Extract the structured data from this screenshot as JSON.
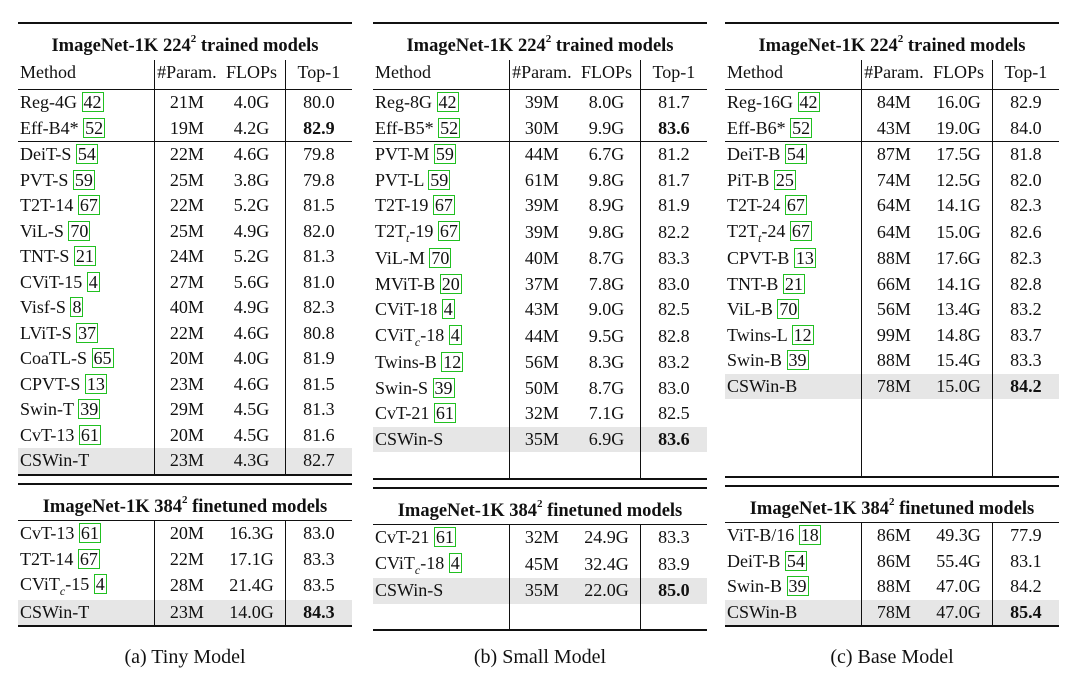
{
  "panels": [
    {
      "caption": "(a) Tiny Model",
      "t224": {
        "prefix": "ImageNet-1K 224",
        "sup": "2",
        "suffix": " trained models"
      },
      "headers": {
        "method": "Method",
        "params": "#Param.",
        "flops": "FLOPs",
        "top1": "Top-1"
      },
      "group1": [
        {
          "name": "Reg-4G ",
          "sub": "",
          "name2": "",
          "ref": "42",
          "params": "21M",
          "flops": "4.0G",
          "top1": "80.0",
          "bold": false
        },
        {
          "name": "Eff-B4* ",
          "sub": "",
          "name2": "",
          "ref": "52",
          "params": "19M",
          "flops": "4.2G",
          "top1": "82.9",
          "bold": true
        }
      ],
      "group2": [
        {
          "name": "DeiT-S ",
          "sub": "",
          "name2": "",
          "ref": "54",
          "params": "22M",
          "flops": "4.6G",
          "top1": "79.8"
        },
        {
          "name": "PVT-S ",
          "sub": "",
          "name2": "",
          "ref": "59",
          "params": "25M",
          "flops": "3.8G",
          "top1": "79.8"
        },
        {
          "name": "T2T-14 ",
          "sub": "",
          "name2": "",
          "ref": "67",
          "params": "22M",
          "flops": "5.2G",
          "top1": "81.5"
        },
        {
          "name": "ViL-S ",
          "sub": "",
          "name2": "",
          "ref": "70",
          "params": "25M",
          "flops": "4.9G",
          "top1": "82.0"
        },
        {
          "name": "TNT-S ",
          "sub": "",
          "name2": "",
          "ref": "21",
          "params": "24M",
          "flops": "5.2G",
          "top1": "81.3"
        },
        {
          "name": "CViT-15 ",
          "sub": "",
          "name2": "",
          "ref": "4",
          "params": "27M",
          "flops": "5.6G",
          "top1": "81.0"
        },
        {
          "name": "Visf-S ",
          "sub": "",
          "name2": "",
          "ref": "8",
          "params": "40M",
          "flops": "4.9G",
          "top1": "82.3"
        },
        {
          "name": "LViT-S ",
          "sub": "",
          "name2": "",
          "ref": "37",
          "params": "22M",
          "flops": "4.6G",
          "top1": "80.8"
        },
        {
          "name": "CoaTL-S ",
          "sub": "",
          "name2": "",
          "ref": "65",
          "params": "20M",
          "flops": "4.0G",
          "top1": "81.9"
        },
        {
          "name": "CPVT-S ",
          "sub": "",
          "name2": "",
          "ref": "13",
          "params": "23M",
          "flops": "4.6G",
          "top1": "81.5"
        },
        {
          "name": "Swin-T ",
          "sub": "",
          "name2": "",
          "ref": "39",
          "params": "29M",
          "flops": "4.5G",
          "top1": "81.3"
        },
        {
          "name": "CvT-13 ",
          "sub": "",
          "name2": "",
          "ref": "61",
          "params": "20M",
          "flops": "4.5G",
          "top1": "81.6"
        }
      ],
      "ours224": {
        "name": "CSWin-T",
        "params": "23M",
        "flops": "4.3G",
        "top1": "82.7",
        "bold": false
      },
      "empty224": 0,
      "t384": {
        "prefix": "ImageNet-1K 384",
        "sup": "2",
        "suffix": " finetuned models"
      },
      "group384": [
        {
          "name": "CvT-13 ",
          "sub": "",
          "name2": "",
          "ref": "61",
          "params": "20M",
          "flops": "16.3G",
          "top1": "83.0"
        },
        {
          "name": "T2T-14 ",
          "sub": "",
          "name2": "",
          "ref": "67",
          "params": "22M",
          "flops": "17.1G",
          "top1": "83.3"
        },
        {
          "name": "CViT",
          "sub": "c",
          "name2": "-15 ",
          "ref": "4",
          "params": "28M",
          "flops": "21.4G",
          "top1": "83.5"
        }
      ],
      "ours384": {
        "name": "CSWin-T",
        "params": "23M",
        "flops": "14.0G",
        "top1": "84.3",
        "bold": true
      },
      "empty384": 0
    },
    {
      "caption": "(b) Small Model",
      "t224": {
        "prefix": "ImageNet-1K 224",
        "sup": "2",
        "suffix": " trained models"
      },
      "headers": {
        "method": "Method",
        "params": "#Param.",
        "flops": "FLOPs",
        "top1": "Top-1"
      },
      "group1": [
        {
          "name": "Reg-8G ",
          "sub": "",
          "name2": "",
          "ref": "42",
          "params": "39M",
          "flops": "8.0G",
          "top1": "81.7",
          "bold": false
        },
        {
          "name": "Eff-B5* ",
          "sub": "",
          "name2": "",
          "ref": "52",
          "params": "30M",
          "flops": "9.9G",
          "top1": "83.6",
          "bold": true
        }
      ],
      "group2": [
        {
          "name": "PVT-M ",
          "sub": "",
          "name2": "",
          "ref": "59",
          "params": "44M",
          "flops": "6.7G",
          "top1": "81.2"
        },
        {
          "name": "PVT-L ",
          "sub": "",
          "name2": "",
          "ref": "59",
          "params": "61M",
          "flops": "9.8G",
          "top1": "81.7"
        },
        {
          "name": "T2T-19 ",
          "sub": "",
          "name2": "",
          "ref": "67",
          "params": "39M",
          "flops": "8.9G",
          "top1": "81.9"
        },
        {
          "name": "T2T",
          "sub": "t",
          "name2": "-19 ",
          "ref": "67",
          "params": "39M",
          "flops": "9.8G",
          "top1": "82.2"
        },
        {
          "name": "ViL-M ",
          "sub": "",
          "name2": "",
          "ref": "70",
          "params": "40M",
          "flops": "8.7G",
          "top1": "83.3"
        },
        {
          "name": "MViT-B  ",
          "sub": "",
          "name2": "",
          "ref": "20",
          "params": "37M",
          "flops": "7.8G",
          "top1": "83.0"
        },
        {
          "name": "CViT-18 ",
          "sub": "",
          "name2": "",
          "ref": "4",
          "params": "43M",
          "flops": "9.0G",
          "top1": "82.5"
        },
        {
          "name": "CViT",
          "sub": "c",
          "name2": "-18 ",
          "ref": "4",
          "params": "44M",
          "flops": "9.5G",
          "top1": "82.8"
        },
        {
          "name": "Twins-B ",
          "sub": "",
          "name2": "",
          "ref": "12",
          "params": "56M",
          "flops": "8.3G",
          "top1": "83.2"
        },
        {
          "name": "Swin-S ",
          "sub": "",
          "name2": "",
          "ref": "39",
          "params": "50M",
          "flops": "8.7G",
          "top1": "83.0"
        },
        {
          "name": "CvT-21 ",
          "sub": "",
          "name2": "",
          "ref": "61",
          "params": "32M",
          "flops": "7.1G",
          "top1": "82.5"
        }
      ],
      "ours224": {
        "name": "CSWin-S",
        "params": "35M",
        "flops": "6.9G",
        "top1": "83.6",
        "bold": true
      },
      "empty224": 1,
      "t384": {
        "prefix": "ImageNet-1K 384",
        "sup": "2",
        "suffix": " finetuned models"
      },
      "group384": [
        {
          "name": "CvT-21 ",
          "sub": "",
          "name2": "",
          "ref": "61",
          "params": "32M",
          "flops": "24.9G",
          "top1": "83.3"
        },
        {
          "name": "CViT",
          "sub": "c",
          "name2": "-18 ",
          "ref": "4",
          "params": "45M",
          "flops": "32.4G",
          "top1": "83.9"
        }
      ],
      "ours384": {
        "name": "CSWin-S",
        "params": "35M",
        "flops": "22.0G",
        "top1": "85.0",
        "bold": true
      },
      "empty384": 1
    },
    {
      "caption": "(c) Base Model",
      "t224": {
        "prefix": "ImageNet-1K 224",
        "sup": "2",
        "suffix": " trained models"
      },
      "headers": {
        "method": "Method",
        "params": "#Param.",
        "flops": "FLOPs",
        "top1": "Top-1"
      },
      "group1": [
        {
          "name": "Reg-16G ",
          "sub": "",
          "name2": "",
          "ref": "42",
          "params": "84M",
          "flops": "16.0G",
          "top1": "82.9",
          "bold": false
        },
        {
          "name": "Eff-B6* ",
          "sub": "",
          "name2": "",
          "ref": "52",
          "params": "43M",
          "flops": "19.0G",
          "top1": "84.0",
          "bold": false
        }
      ],
      "group2": [
        {
          "name": "DeiT-B ",
          "sub": "",
          "name2": "",
          "ref": "54",
          "params": "87M",
          "flops": "17.5G",
          "top1": "81.8"
        },
        {
          "name": "PiT-B ",
          "sub": "",
          "name2": "",
          "ref": "25",
          "params": "74M",
          "flops": "12.5G",
          "top1": "82.0"
        },
        {
          "name": "T2T-24 ",
          "sub": "",
          "name2": "",
          "ref": "67",
          "params": "64M",
          "flops": "14.1G",
          "top1": "82.3"
        },
        {
          "name": "T2T",
          "sub": "t",
          "name2": "-24 ",
          "ref": "67",
          "params": "64M",
          "flops": "15.0G",
          "top1": "82.6"
        },
        {
          "name": "CPVT-B ",
          "sub": "",
          "name2": "",
          "ref": "13",
          "params": "88M",
          "flops": "17.6G",
          "top1": "82.3"
        },
        {
          "name": "TNT-B ",
          "sub": "",
          "name2": "",
          "ref": "21",
          "params": "66M",
          "flops": "14.1G",
          "top1": "82.8"
        },
        {
          "name": "ViL-B ",
          "sub": "",
          "name2": "",
          "ref": "70",
          "params": "56M",
          "flops": "13.4G",
          "top1": "83.2"
        },
        {
          "name": "Twins-L ",
          "sub": "",
          "name2": "",
          "ref": "12",
          "params": "99M",
          "flops": "14.8G",
          "top1": "83.7"
        },
        {
          "name": "Swin-B ",
          "sub": "",
          "name2": "",
          "ref": "39",
          "params": "88M",
          "flops": "15.4G",
          "top1": "83.3"
        }
      ],
      "ours224": {
        "name": "CSWin-B",
        "params": "78M",
        "flops": "15.0G",
        "top1": "84.2",
        "bold": true
      },
      "empty224": 3,
      "t384": {
        "prefix": "ImageNet-1K 384",
        "sup": "2",
        "suffix": " finetuned models"
      },
      "group384": [
        {
          "name": "ViT-B/16 ",
          "sub": "",
          "name2": "",
          "ref": "18",
          "params": "86M",
          "flops": "49.3G",
          "top1": "77.9"
        },
        {
          "name": "DeiT-B ",
          "sub": "",
          "name2": "",
          "ref": "54",
          "params": "86M",
          "flops": "55.4G",
          "top1": "83.1"
        },
        {
          "name": "Swin-B ",
          "sub": "",
          "name2": "",
          "ref": "39",
          "params": "88M",
          "flops": "47.0G",
          "top1": "84.2"
        }
      ],
      "ours384": {
        "name": "CSWin-B",
        "params": "78M",
        "flops": "47.0G",
        "top1": "85.4",
        "bold": true
      },
      "empty384": 0
    }
  ]
}
